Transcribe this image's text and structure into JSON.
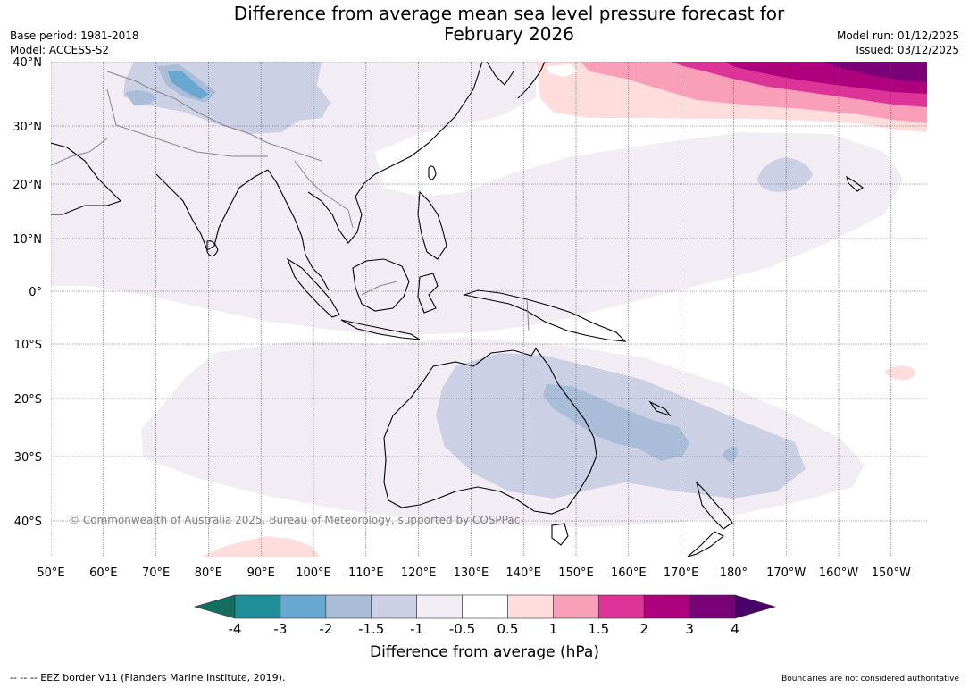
{
  "header": {
    "title_line1": "Difference from average mean sea level pressure forecast for",
    "title_line2": "February 2026",
    "base_period": "Base period: 1981-2018",
    "model": "Model: ACCESS-S2",
    "model_run": "Model run: 01/12/2025",
    "issued": "Issued: 03/12/2025"
  },
  "map": {
    "lat_labels": [
      "40°N",
      "30°N",
      "20°N",
      "10°N",
      "0°",
      "10°S",
      "20°S",
      "30°S",
      "40°S"
    ],
    "lon_labels": [
      "50°E",
      "60°E",
      "70°E",
      "80°E",
      "90°E",
      "100°E",
      "110°E",
      "120°E",
      "130°E",
      "140°E",
      "150°E",
      "160°E",
      "170°E",
      "180°",
      "170°W",
      "160°W",
      "150°W"
    ],
    "copyright": "© Commonwealth of Australia 2025, Bureau of Meteorology, supported by COSPPac"
  },
  "colorbar": {
    "ticks": [
      "-4",
      "-3",
      "-2",
      "-1.5",
      "-1",
      "-0.5",
      "0.5",
      "1",
      "1.5",
      "2",
      "3",
      "4"
    ],
    "colors": [
      "#126e5e",
      "#1e8f99",
      "#68a8d0",
      "#a9bcd8",
      "#ccd0e4",
      "#f2edf5",
      "#ffffff",
      "#ffdddd",
      "#fa9fba",
      "#dd3497",
      "#ae017e",
      "#7a0177",
      "#49006a"
    ],
    "label": "Difference from average (hPa)"
  },
  "footer": {
    "eez": "--  --  -- EEZ border V11 (Flanders Marine Institute, 2019).",
    "disclaimer": "Boundaries are not considered authoritative"
  }
}
